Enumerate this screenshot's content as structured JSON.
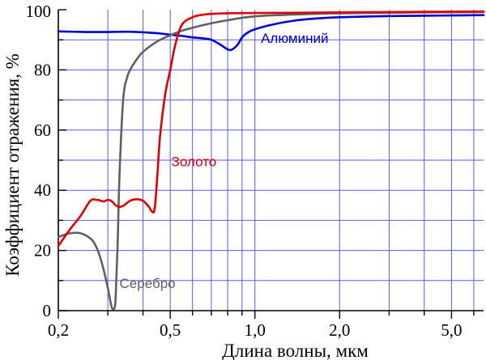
{
  "chart_data": {
    "type": "line",
    "xlabel": "Длина волны, мкм",
    "ylabel": "Коэффициент отражения, %",
    "x_scale": "log",
    "xlim": [
      0.2,
      6.5
    ],
    "ylim": [
      0,
      100
    ],
    "x_ticks": [
      {
        "value": 0.2,
        "label": "0,2"
      },
      {
        "value": 0.5,
        "label": "0,5"
      },
      {
        "value": 1.0,
        "label": "1,0"
      },
      {
        "value": 2.0,
        "label": "2,0"
      },
      {
        "value": 5.0,
        "label": "5,0"
      }
    ],
    "y_ticks": [
      {
        "value": 0,
        "label": "0"
      },
      {
        "value": 20,
        "label": "20"
      },
      {
        "value": 40,
        "label": "40"
      },
      {
        "value": 60,
        "label": "60"
      },
      {
        "value": 80,
        "label": "80"
      },
      {
        "value": 100,
        "label": "100"
      }
    ],
    "grid": true,
    "grid_color": "#5a5aee",
    "series": [
      {
        "name": "Алюминий",
        "color": "#0000d0",
        "x": [
          0.2,
          0.25,
          0.3,
          0.35,
          0.4,
          0.45,
          0.5,
          0.55,
          0.6,
          0.65,
          0.7,
          0.75,
          0.8,
          0.83,
          0.87,
          0.9,
          0.95,
          1.0,
          1.1,
          1.3,
          1.6,
          2.0,
          3.0,
          4.0,
          5.0,
          6.5
        ],
        "values": [
          92.8,
          92.6,
          92.6,
          92.7,
          92.5,
          92.2,
          91.7,
          91.3,
          90.8,
          90.5,
          90.0,
          88.5,
          86.8,
          86.8,
          88.5,
          90.8,
          92.6,
          93.5,
          94.6,
          96.0,
          97.0,
          97.5,
          97.9,
          98.0,
          98.1,
          98.2
        ]
      },
      {
        "name": "Золото",
        "color": "#e00000",
        "x": [
          0.2,
          0.22,
          0.24,
          0.26,
          0.275,
          0.29,
          0.3,
          0.31,
          0.32,
          0.33,
          0.34,
          0.36,
          0.38,
          0.4,
          0.42,
          0.43,
          0.44,
          0.45,
          0.46,
          0.48,
          0.5,
          0.52,
          0.55,
          0.6,
          0.65,
          0.7,
          0.8,
          1.0,
          2.0,
          4.0,
          6.5
        ],
        "values": [
          21.5,
          27.0,
          31.5,
          36.5,
          36.8,
          36.3,
          36.8,
          36.3,
          35.0,
          34.5,
          34.8,
          36.5,
          37.0,
          36.5,
          34.5,
          33.0,
          33.8,
          45.0,
          58.0,
          72.0,
          80.0,
          88.0,
          95.0,
          97.5,
          98.3,
          98.6,
          98.8,
          98.9,
          99.1,
          99.3,
          99.4
        ]
      },
      {
        "name": "Серебро",
        "color": "#606060",
        "x": [
          0.2,
          0.22,
          0.24,
          0.26,
          0.27,
          0.28,
          0.29,
          0.3,
          0.305,
          0.31,
          0.315,
          0.318,
          0.32,
          0.325,
          0.33,
          0.34,
          0.35,
          0.36,
          0.38,
          0.4,
          0.45,
          0.5,
          0.55,
          0.6,
          0.7,
          0.8,
          1.0,
          1.5,
          2.0,
          4.0,
          6.5
        ],
        "values": [
          24.5,
          25.7,
          25.7,
          24.0,
          22.0,
          18.5,
          13.5,
          7.5,
          4.0,
          1.0,
          0.5,
          1.5,
          5.0,
          22.0,
          45.0,
          70.0,
          77.0,
          80.0,
          83.5,
          86.0,
          89.5,
          91.5,
          93.0,
          94.0,
          95.5,
          96.5,
          97.8,
          98.5,
          98.8,
          99.1,
          99.2
        ]
      }
    ],
    "annotations": [
      {
        "text": "Алюминий",
        "series": "Алюминий"
      },
      {
        "text": "Золото",
        "series": "Золото"
      },
      {
        "text": "Серебро",
        "series": "Серебро"
      }
    ]
  }
}
